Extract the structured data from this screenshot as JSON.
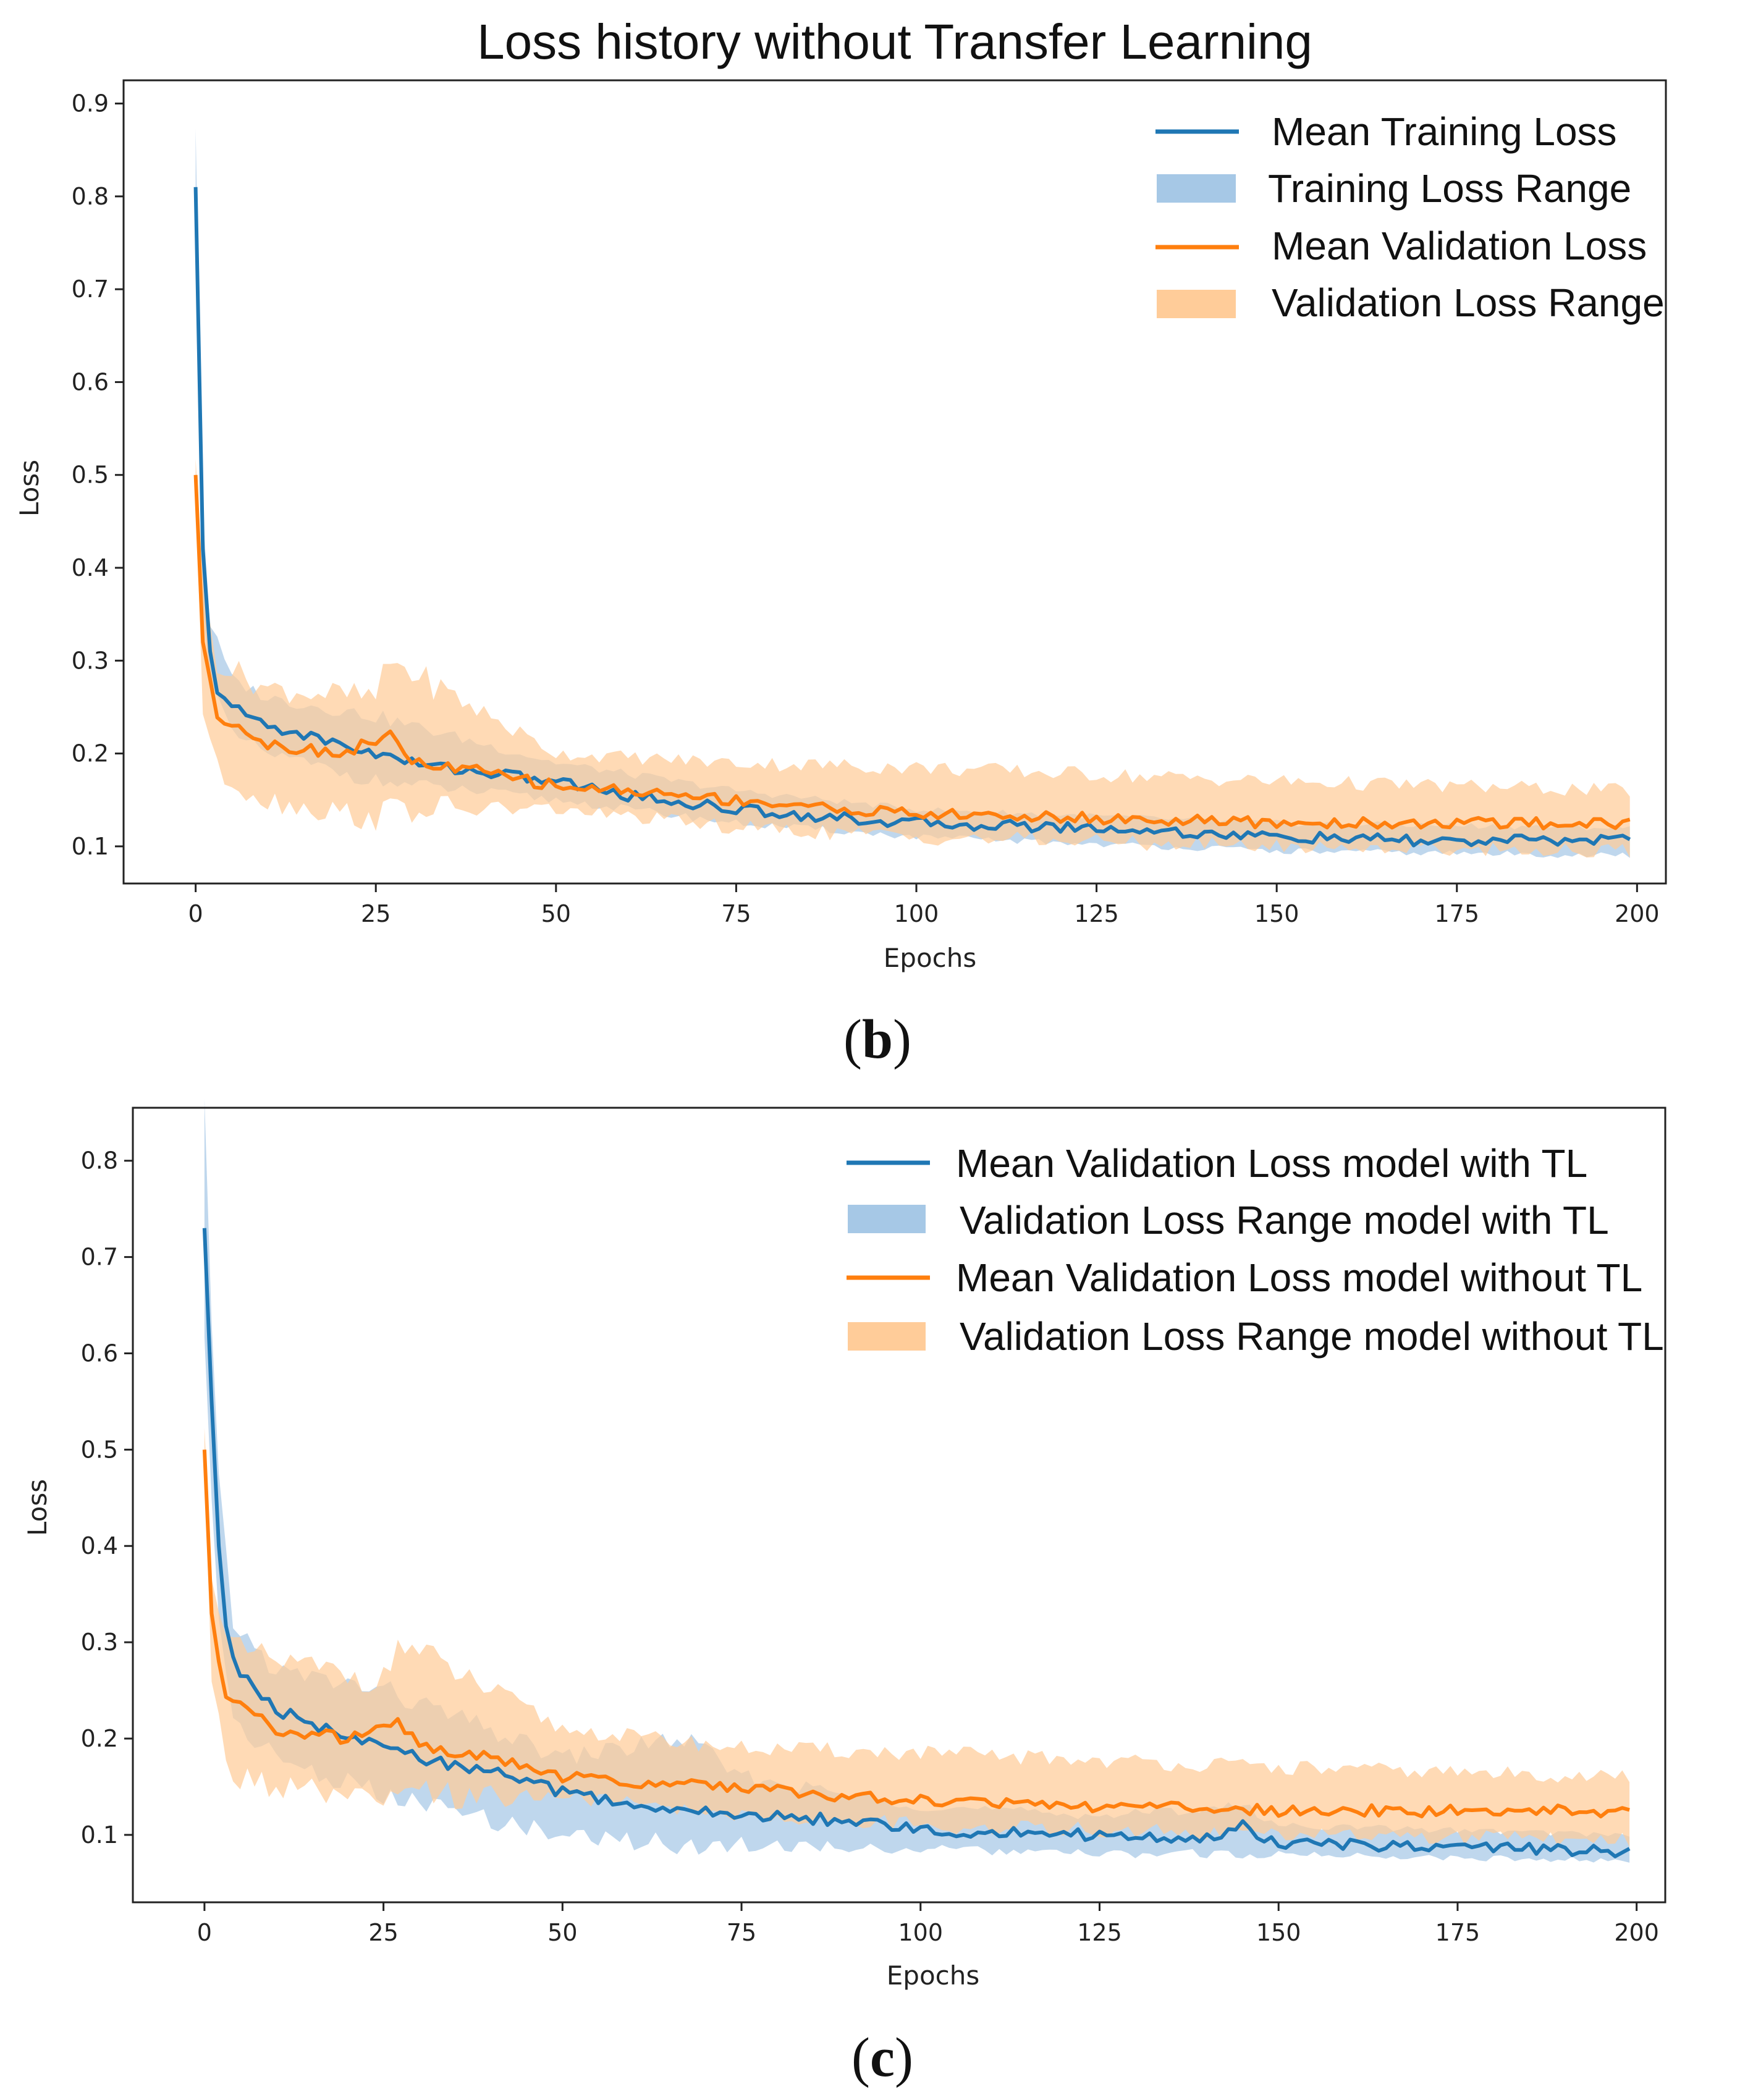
{
  "colors": {
    "blue": "#1f77b4",
    "orange": "#ff7f0e",
    "blue_band": "#a6c8e6",
    "orange_band": "#ffcc99"
  },
  "panel_labels": {
    "b": "(b)",
    "b_letter": "b",
    "c": "(c)",
    "c_letter": "c"
  },
  "chart_data": [
    {
      "type": "line",
      "title": "Loss history without Transfer Learning",
      "xlabel": "Epochs",
      "ylabel": "Loss",
      "xlim": [
        -10,
        204
      ],
      "ylim": [
        0.06,
        0.925
      ],
      "xticks": [
        0,
        25,
        50,
        75,
        100,
        125,
        150,
        175,
        200
      ],
      "yticks": [
        0.1,
        0.2,
        0.3,
        0.4,
        0.5,
        0.6,
        0.7,
        0.8,
        0.9
      ],
      "legend_position": "top-right",
      "legend": [
        "Mean Training Loss",
        "Training Loss Range",
        "Mean Validation Loss",
        "Validation Loss Range"
      ],
      "series": [
        {
          "name": "Mean Training Loss",
          "color": "blue",
          "keyframes": [
            [
              0,
              0.81
            ],
            [
              1,
              0.42
            ],
            [
              2,
              0.31
            ],
            [
              3,
              0.27
            ],
            [
              5,
              0.25
            ],
            [
              10,
              0.23
            ],
            [
              20,
              0.21
            ],
            [
              30,
              0.19
            ],
            [
              40,
              0.18
            ],
            [
              50,
              0.17
            ],
            [
              60,
              0.155
            ],
            [
              75,
              0.14
            ],
            [
              90,
              0.13
            ],
            [
              100,
              0.125
            ],
            [
              125,
              0.12
            ],
            [
              150,
              0.11
            ],
            [
              175,
              0.105
            ],
            [
              199,
              0.108
            ]
          ],
          "band_keyframes": [
            [
              0,
              0.75,
              0.88
            ],
            [
              1,
              0.37,
              0.46
            ],
            [
              2,
              0.28,
              0.34
            ],
            [
              5,
              0.22,
              0.28
            ],
            [
              10,
              0.2,
              0.26
            ],
            [
              25,
              0.17,
              0.24
            ],
            [
              50,
              0.15,
              0.19
            ],
            [
              75,
              0.125,
              0.16
            ],
            [
              100,
              0.11,
              0.14
            ],
            [
              150,
              0.095,
              0.125
            ],
            [
              199,
              0.09,
              0.12
            ]
          ]
        },
        {
          "name": "Mean Validation Loss",
          "color": "orange",
          "keyframes": [
            [
              0,
              0.5
            ],
            [
              1,
              0.32
            ],
            [
              2,
              0.28
            ],
            [
              3,
              0.24
            ],
            [
              5,
              0.235
            ],
            [
              10,
              0.21
            ],
            [
              20,
              0.2
            ],
            [
              27,
              0.22
            ],
            [
              30,
              0.19
            ],
            [
              40,
              0.18
            ],
            [
              50,
              0.165
            ],
            [
              60,
              0.16
            ],
            [
              75,
              0.15
            ],
            [
              90,
              0.14
            ],
            [
              100,
              0.135
            ],
            [
              125,
              0.13
            ],
            [
              150,
              0.125
            ],
            [
              199,
              0.125
            ]
          ],
          "band_keyframes": [
            [
              0,
              0.48,
              0.52
            ],
            [
              1,
              0.25,
              0.38
            ],
            [
              3,
              0.18,
              0.3
            ],
            [
              5,
              0.17,
              0.29
            ],
            [
              10,
              0.15,
              0.27
            ],
            [
              25,
              0.13,
              0.26
            ],
            [
              27,
              0.14,
              0.3
            ],
            [
              50,
              0.14,
              0.2
            ],
            [
              75,
              0.12,
              0.19
            ],
            [
              100,
              0.11,
              0.185
            ],
            [
              150,
              0.1,
              0.17
            ],
            [
              199,
              0.095,
              0.16
            ]
          ]
        }
      ]
    },
    {
      "type": "line",
      "title": "",
      "xlabel": "Epochs",
      "ylabel": "Loss",
      "xlim": [
        -10,
        204
      ],
      "ylim": [
        0.03,
        0.855
      ],
      "xticks": [
        0,
        25,
        50,
        75,
        100,
        125,
        150,
        175,
        200
      ],
      "yticks": [
        0.1,
        0.2,
        0.3,
        0.4,
        0.5,
        0.6,
        0.7,
        0.8
      ],
      "legend_position": "top-right",
      "legend": [
        "Mean Validation Loss model with TL",
        "Validation Loss Range model with TL",
        "Mean Validation Loss model without TL",
        "Validation Loss Range model without TL"
      ],
      "series": [
        {
          "name": "Mean Validation Loss model with TL",
          "color": "blue",
          "keyframes": [
            [
              0,
              0.73
            ],
            [
              1,
              0.55
            ],
            [
              2,
              0.4
            ],
            [
              3,
              0.32
            ],
            [
              4,
              0.28
            ],
            [
              5,
              0.27
            ],
            [
              10,
              0.23
            ],
            [
              20,
              0.2
            ],
            [
              30,
              0.18
            ],
            [
              40,
              0.165
            ],
            [
              50,
              0.145
            ],
            [
              60,
              0.13
            ],
            [
              75,
              0.12
            ],
            [
              90,
              0.115
            ],
            [
              100,
              0.105
            ],
            [
              125,
              0.1
            ],
            [
              140,
              0.095
            ],
            [
              145,
              0.11
            ],
            [
              150,
              0.09
            ],
            [
              175,
              0.088
            ],
            [
              199,
              0.083
            ]
          ],
          "band_keyframes": [
            [
              0,
              0.6,
              0.85
            ],
            [
              1,
              0.45,
              0.62
            ],
            [
              2,
              0.33,
              0.46
            ],
            [
              4,
              0.22,
              0.32
            ],
            [
              10,
              0.18,
              0.27
            ],
            [
              25,
              0.14,
              0.25
            ],
            [
              50,
              0.1,
              0.18
            ],
            [
              67,
              0.09,
              0.2
            ],
            [
              75,
              0.09,
              0.16
            ],
            [
              100,
              0.085,
              0.13
            ],
            [
              125,
              0.08,
              0.12
            ],
            [
              145,
              0.08,
              0.13
            ],
            [
              150,
              0.08,
              0.11
            ],
            [
              199,
              0.073,
              0.1
            ]
          ]
        },
        {
          "name": "Mean Validation Loss model without TL",
          "color": "orange",
          "keyframes": [
            [
              0,
              0.5
            ],
            [
              1,
              0.33
            ],
            [
              2,
              0.28
            ],
            [
              3,
              0.24
            ],
            [
              5,
              0.235
            ],
            [
              10,
              0.21
            ],
            [
              20,
              0.2
            ],
            [
              27,
              0.22
            ],
            [
              30,
              0.19
            ],
            [
              40,
              0.18
            ],
            [
              50,
              0.16
            ],
            [
              60,
              0.155
            ],
            [
              75,
              0.15
            ],
            [
              90,
              0.14
            ],
            [
              100,
              0.135
            ],
            [
              125,
              0.13
            ],
            [
              150,
              0.125
            ],
            [
              199,
              0.125
            ]
          ],
          "band_keyframes": [
            [
              0,
              0.48,
              0.52
            ],
            [
              1,
              0.26,
              0.38
            ],
            [
              3,
              0.17,
              0.3
            ],
            [
              5,
              0.16,
              0.29
            ],
            [
              10,
              0.15,
              0.28
            ],
            [
              25,
              0.13,
              0.26
            ],
            [
              27,
              0.14,
              0.3
            ],
            [
              50,
              0.14,
              0.21
            ],
            [
              75,
              0.12,
              0.19
            ],
            [
              100,
              0.11,
              0.185
            ],
            [
              150,
              0.1,
              0.17
            ],
            [
              199,
              0.095,
              0.16
            ]
          ]
        }
      ]
    }
  ]
}
